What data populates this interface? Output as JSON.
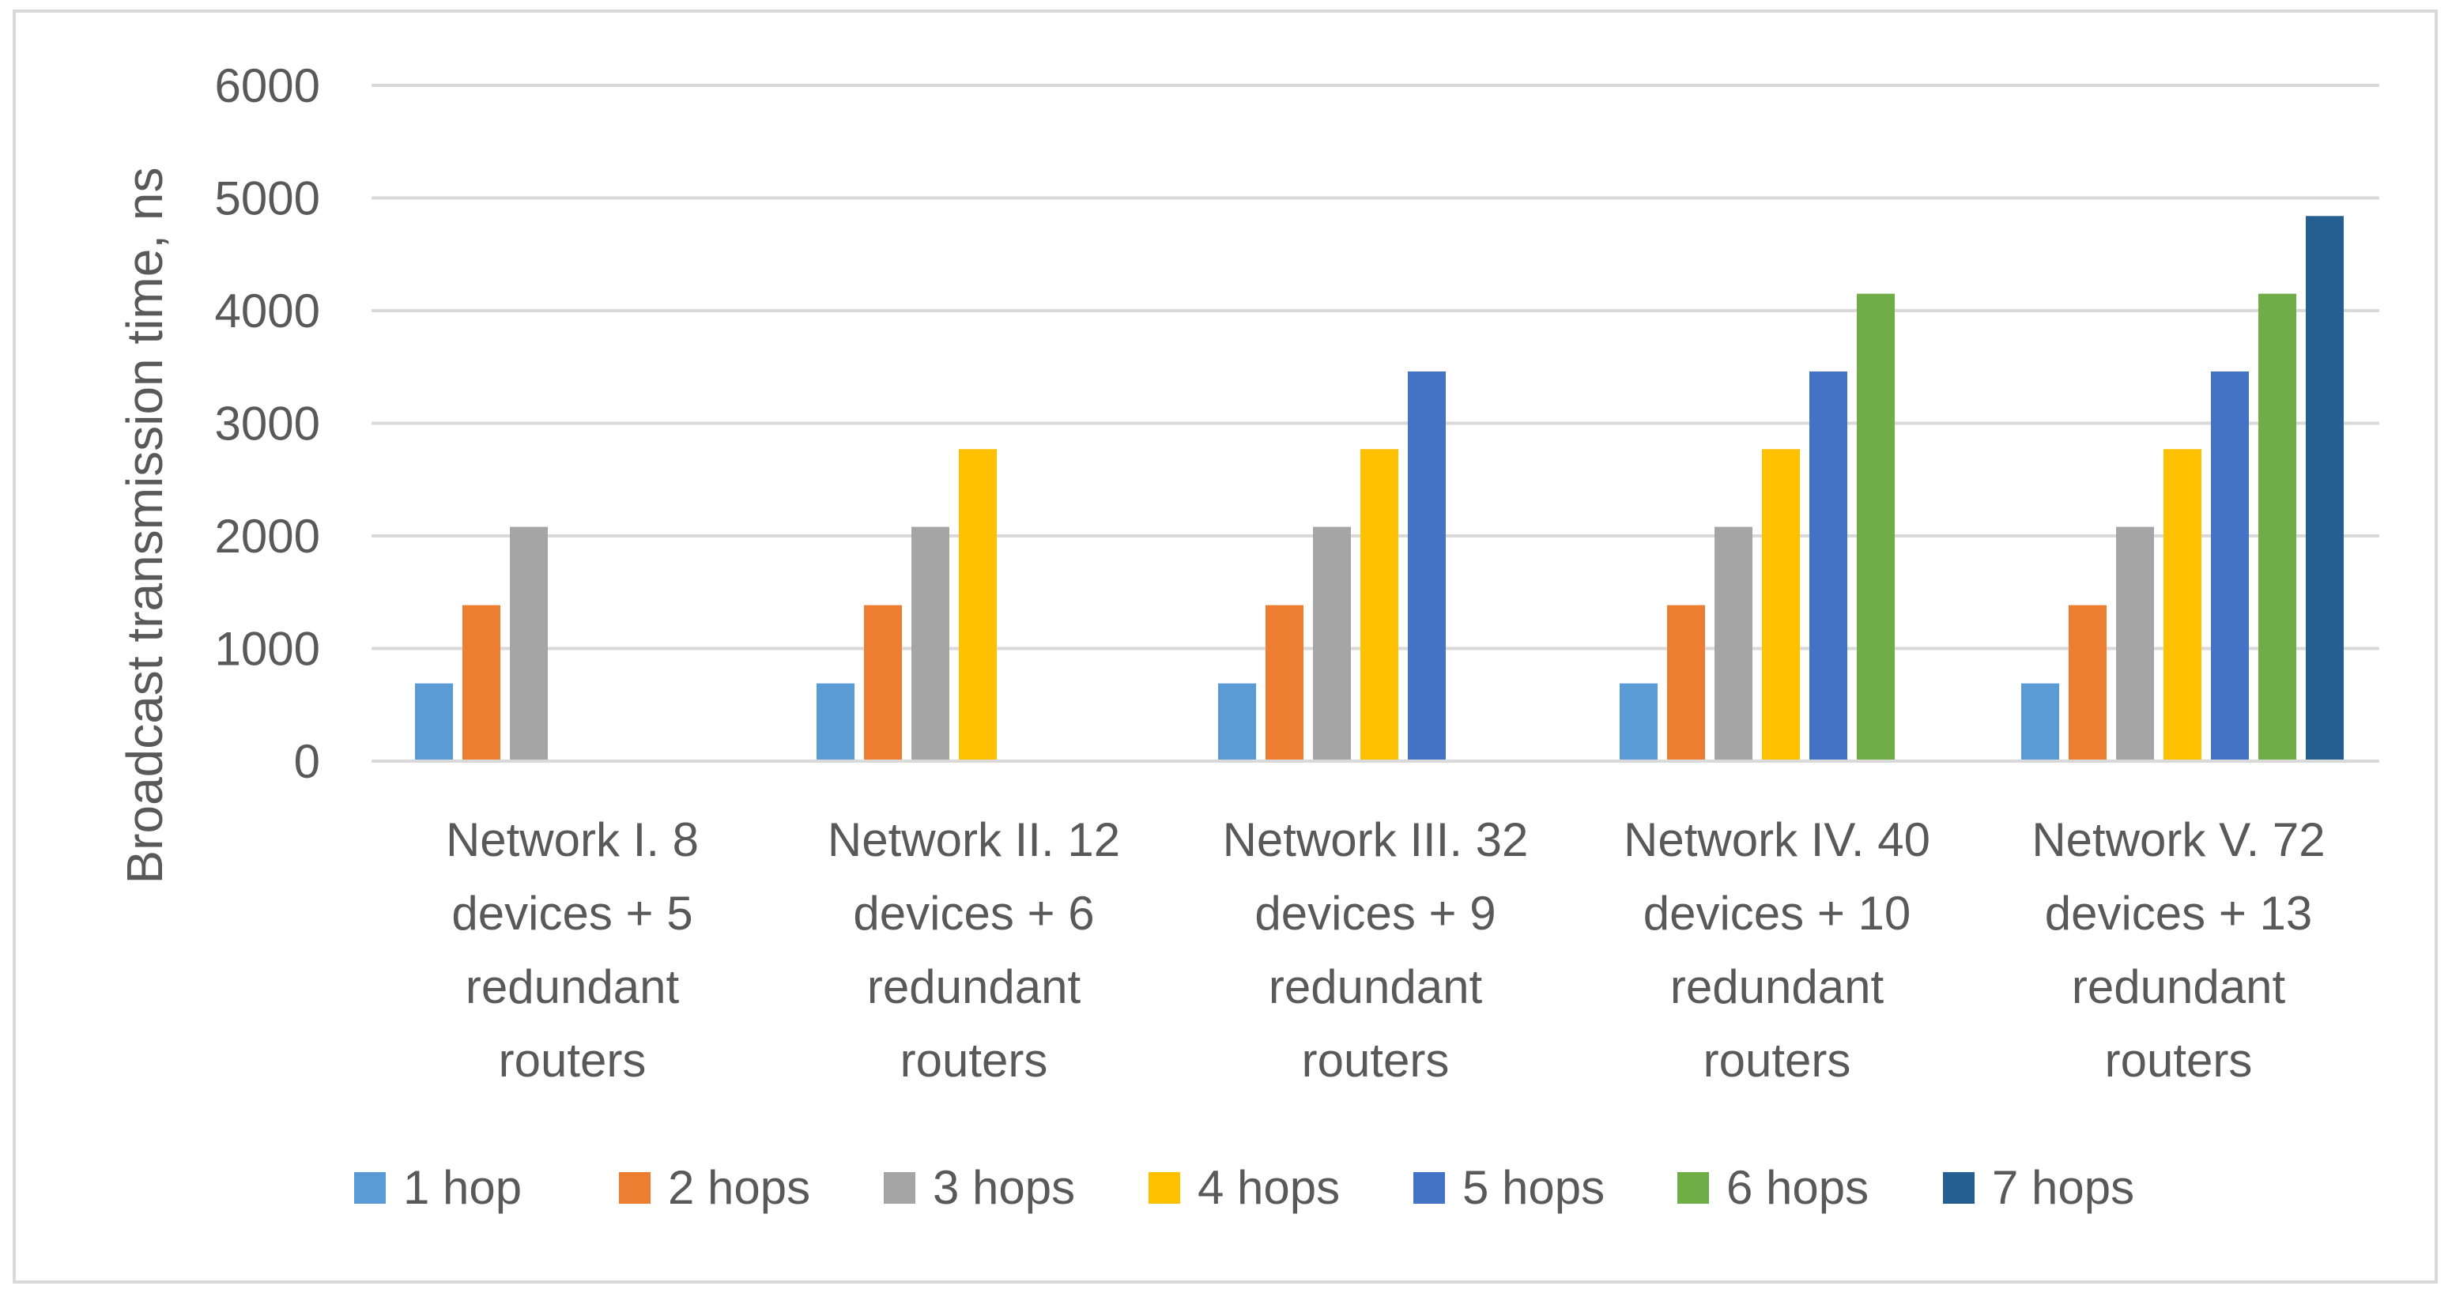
{
  "chart_data": {
    "type": "bar",
    "title": "",
    "xlabel": "",
    "ylabel": "Broadcast transmission time, ns",
    "ylim": [
      0,
      6000
    ],
    "yticks": [
      0,
      1000,
      2000,
      3000,
      4000,
      5000,
      6000
    ],
    "grid": true,
    "legend_position": "bottom",
    "categories": [
      [
        "Network I. 8",
        "devices + 5",
        "redundant",
        "routers"
      ],
      [
        "Network II. 12",
        "devices + 6",
        "redundant",
        "routers"
      ],
      [
        "Network III. 32",
        "devices + 9",
        "redundant",
        "routers"
      ],
      [
        "Network IV. 40",
        "devices + 10",
        "redundant",
        "routers"
      ],
      [
        "Network V. 72",
        "devices + 13",
        "redundant",
        "routers"
      ]
    ],
    "series": [
      {
        "name": "1 hop",
        "color": "#5b9bd5",
        "values": [
          690,
          690,
          690,
          690,
          690
        ]
      },
      {
        "name": "2 hops",
        "color": "#ed7d31",
        "values": [
          1385,
          1385,
          1385,
          1385,
          1385
        ]
      },
      {
        "name": "3 hops",
        "color": "#a5a5a5",
        "values": [
          2080,
          2080,
          2080,
          2080,
          2080
        ]
      },
      {
        "name": "4 hops",
        "color": "#ffc000",
        "values": [
          null,
          2770,
          2770,
          2770,
          2770
        ]
      },
      {
        "name": "5 hops",
        "color": "#4472c4",
        "values": [
          null,
          null,
          3460,
          3460,
          3460
        ]
      },
      {
        "name": "6 hops",
        "color": "#70ad47",
        "values": [
          null,
          null,
          null,
          4150,
          4150
        ]
      },
      {
        "name": "7 hops",
        "color": "#255e91",
        "values": [
          null,
          null,
          null,
          null,
          4840
        ]
      }
    ]
  }
}
